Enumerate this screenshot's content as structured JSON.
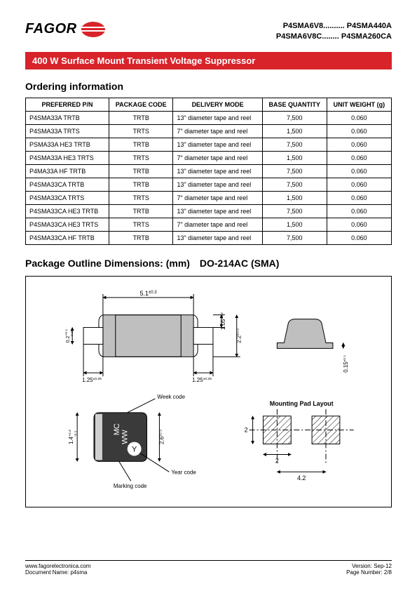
{
  "brand": "FAGOR",
  "header_codes": {
    "line1_left": "P4SMA6V8..........",
    "line1_right": "P4SMA440A",
    "line2_left": "P4SMA6V8C........",
    "line2_right": "P4SMA260CA"
  },
  "titlebar": "400 W Surface Mount Transient Voltage Suppressor",
  "sections": {
    "ordering": "Ordering information",
    "package": "Package Outline Dimensions",
    "package_units": ":  (mm)",
    "package_type": "DO-214AC (SMA)"
  },
  "table": {
    "columns": [
      "PREFERRED P/N",
      "PACKAGE CODE",
      "DELIVERY MODE",
      "BASE QUANTITY",
      "UNIT WEIGHT (g)"
    ],
    "rows": [
      [
        "P4SMA33A TRTB",
        "TRTB",
        "13\" diameter tape and reel",
        "7,500",
        "0.060"
      ],
      [
        "P4SMA33A TRTS",
        "TRTS",
        "7\" diameter tape and reel",
        "1,500",
        "0.060"
      ],
      [
        "PSMA33A HE3 TRTB",
        "TRTB",
        "13\" diameter tape and reel",
        "7,500",
        "0.060"
      ],
      [
        "P4SMA33A HE3 TRTS",
        "TRTS",
        "7\" diameter tape and reel",
        "1,500",
        "0.060"
      ],
      [
        "P4MA33A HF TRTB",
        "TRTB",
        "13\" diameter tape and reel",
        "7,500",
        "0.060"
      ],
      [
        "P4SMA33CA TRTB",
        "TRTB",
        "13\" diameter tape and reel",
        "7,500",
        "0.060"
      ],
      [
        "P4SMA33CA TRTS",
        "TRTS",
        "7\" diameter tape and reel",
        "1,500",
        "0.060"
      ],
      [
        "P4SMA33CA HE3 TRTB",
        "TRTB",
        "13\" diameter tape and reel",
        "7,500",
        "0.060"
      ],
      [
        "P4SMA33CA HE3 TRTS",
        "TRTS",
        "7\" diameter tape and reel",
        "1,500",
        "0.060"
      ],
      [
        "P4SMA33CA HF TRTB",
        "TRTB",
        "13\" diameter tape and reel",
        "7,500",
        "0.060"
      ]
    ]
  },
  "dimensions": {
    "top_width": "5.1±0.3",
    "top_height_right1": "1.05±0.2",
    "top_height_right2": "2.2±0.3",
    "lead_left": "1.25±0.25",
    "lead_right": "1.25±0.25",
    "top_leftvert1": "0.2+0.1/-0.05",
    "side_gap": "0.15±0.1",
    "front_h": "1.4+0.2/-0.1",
    "front_w": "2.6±0.3",
    "pad_title": "Mounting Pad Layout",
    "pad_h": "2",
    "pad_w": "2",
    "pad_pitch": "4.2",
    "label_week": "Week code",
    "label_year": "Year code",
    "label_marking": "Marking code",
    "chip_mc": "MC",
    "chip_ww": "WW",
    "chip_y": "Y"
  },
  "footer": {
    "url": "www.fagorelectronica.com",
    "doc": "Document Name: p4sma",
    "version": "Version:   Sep-12",
    "page": "Page Number: 2/8"
  },
  "colors": {
    "red": "#d8232a",
    "black": "#000000",
    "grey_fill": "#bfbfbf"
  }
}
